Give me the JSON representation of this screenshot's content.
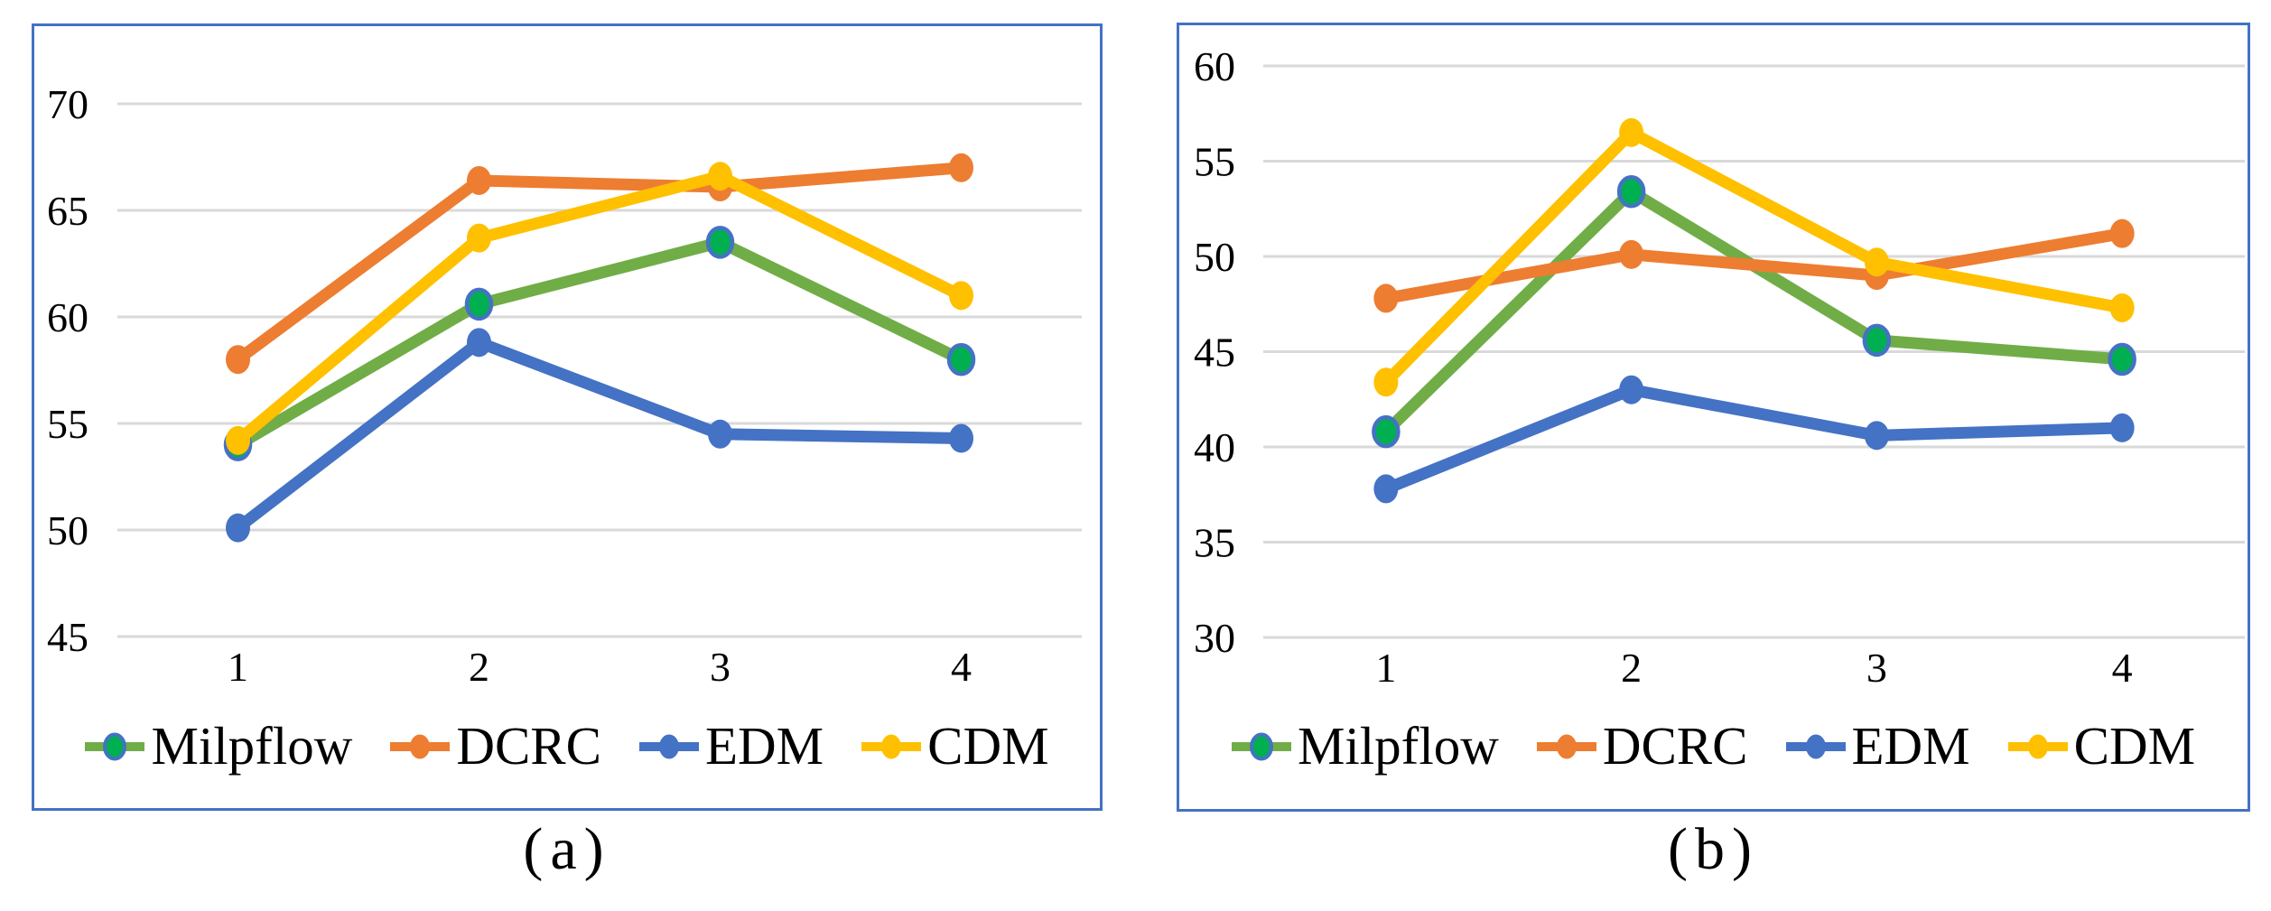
{
  "page": {
    "background": "#ffffff"
  },
  "colors": {
    "panel_border": "#4472C4",
    "gridline": "#D9D9D9",
    "text": "#000000",
    "milpflow_line": "#70AD47",
    "milpflow_marker_fill": "#00B050",
    "milpflow_marker_ring": "#4472C4",
    "dcrc_orange": "#ED7D31",
    "edm_blue": "#4472C4",
    "cdm_yellow": "#FFC000"
  },
  "chart_data": [
    {
      "type": "line",
      "caption": "(a)",
      "categories": [
        "1",
        "2",
        "3",
        "4"
      ],
      "ylim": [
        45,
        70
      ],
      "ytick_step": 5,
      "ytick_labels": [
        "70",
        "65",
        "60",
        "55",
        "50",
        "45"
      ],
      "grid": true,
      "legend_position": "bottom",
      "series": [
        {
          "name": "Milpflow",
          "values": [
            54.0,
            60.6,
            63.5,
            58.0
          ],
          "line_color": "#70AD47",
          "marker_fill": "#00B050",
          "marker_ring": "#4472C4"
        },
        {
          "name": "DCRC",
          "values": [
            58.0,
            66.4,
            66.1,
            67.0
          ],
          "line_color": "#ED7D31",
          "marker_fill": "#ED7D31"
        },
        {
          "name": "EDM",
          "values": [
            50.1,
            58.8,
            54.5,
            54.3
          ],
          "line_color": "#4472C4",
          "marker_fill": "#4472C4"
        },
        {
          "name": "CDM",
          "values": [
            54.2,
            63.7,
            66.6,
            61.0
          ],
          "line_color": "#FFC000",
          "marker_fill": "#FFC000"
        }
      ]
    },
    {
      "type": "line",
      "caption": "(b)",
      "categories": [
        "1",
        "2",
        "3",
        "4"
      ],
      "ylim": [
        30,
        60
      ],
      "ytick_step": 5,
      "ytick_labels": [
        "60",
        "55",
        "50",
        "45",
        "40",
        "35",
        "30"
      ],
      "grid": true,
      "legend_position": "bottom",
      "series": [
        {
          "name": "Milpflow",
          "values": [
            40.8,
            53.4,
            45.6,
            44.6
          ],
          "line_color": "#70AD47",
          "marker_fill": "#00B050",
          "marker_ring": "#4472C4"
        },
        {
          "name": "DCRC",
          "values": [
            47.8,
            50.1,
            49.0,
            51.2
          ],
          "line_color": "#ED7D31",
          "marker_fill": "#ED7D31"
        },
        {
          "name": "EDM",
          "values": [
            37.8,
            43.0,
            40.6,
            41.0
          ],
          "line_color": "#4472C4",
          "marker_fill": "#4472C4"
        },
        {
          "name": "CDM",
          "values": [
            43.4,
            56.5,
            49.7,
            47.3
          ],
          "line_color": "#FFC000",
          "marker_fill": "#FFC000"
        }
      ]
    }
  ]
}
